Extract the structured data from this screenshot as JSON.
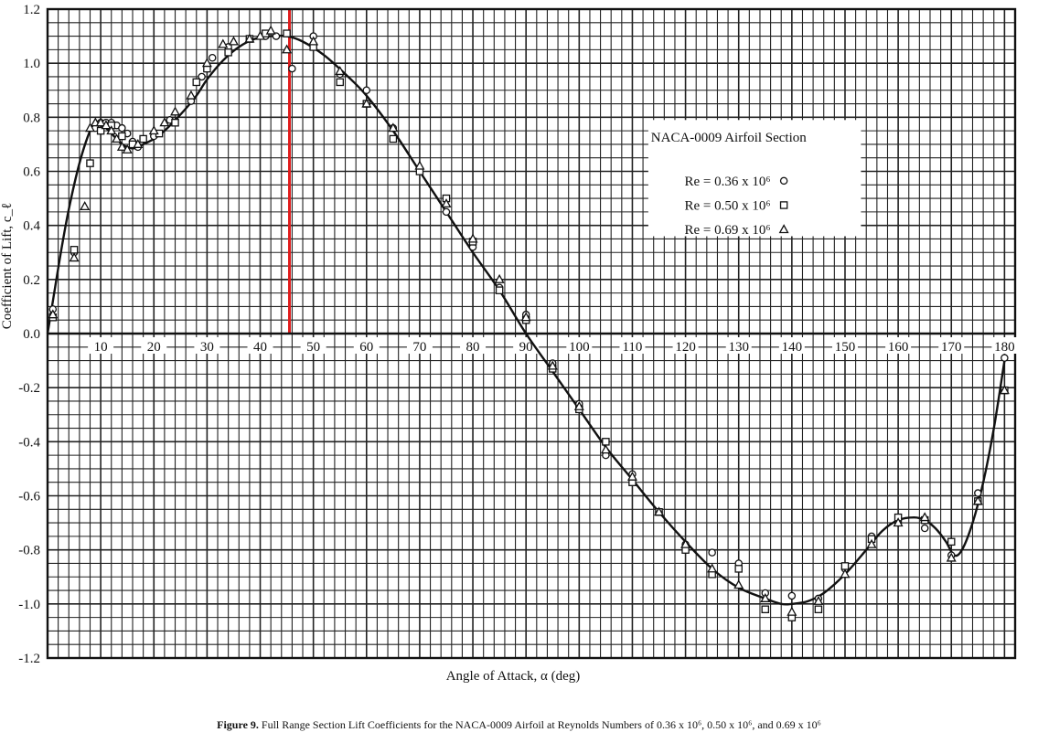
{
  "caption": {
    "label": "Figure 9.",
    "text": "Full Range Section Lift Coefficients for the NACA-0009 Airfoil at Reynolds Numbers of 0.36 x 10⁶, 0.50 x 10⁶, and 0.69 x 10⁶"
  },
  "chart_data": {
    "type": "scatter",
    "xlabel": "Angle of Attack, α (deg)",
    "ylabel": "Coefficient of Lift, c_ℓ",
    "xlim": [
      0,
      182
    ],
    "ylim": [
      -1.2,
      1.2
    ],
    "xticks": [
      "10",
      "20",
      "30",
      "40",
      "50",
      "60",
      "70",
      "80",
      "90",
      "100",
      "110",
      "120",
      "130",
      "140",
      "150",
      "160",
      "170",
      "180"
    ],
    "yticks": [
      "1.2",
      "1.0",
      "0.8",
      "0.6",
      "0.4",
      "0.2",
      "0.0",
      "-0.2",
      "-0.4",
      "-0.6",
      "-0.8",
      "-1.0",
      "-1.2"
    ],
    "grid": true,
    "legend_title": "NACA-0009 Airfoil Section",
    "legend_position": "upper-right",
    "highlight_line_x": 45.5,
    "highlight_color": "#e11d1d",
    "fit_curve": {
      "x": [
        0,
        1,
        2.5,
        4,
        6,
        8,
        9,
        10,
        11,
        12,
        13,
        14,
        15,
        16,
        17,
        18,
        20,
        22,
        25,
        28,
        30,
        33,
        36,
        39,
        42,
        45,
        48,
        52,
        56,
        60,
        65,
        70,
        75,
        80,
        85,
        90,
        95,
        100,
        105,
        110,
        115,
        120,
        125,
        130,
        135,
        138,
        140,
        143,
        146,
        150,
        154,
        157,
        160,
        163,
        165,
        167,
        169,
        170.5,
        172,
        174,
        176,
        178,
        180
      ],
      "y": [
        0.0,
        0.12,
        0.3,
        0.46,
        0.63,
        0.75,
        0.77,
        0.77,
        0.76,
        0.74,
        0.72,
        0.7,
        0.69,
        0.685,
        0.69,
        0.7,
        0.72,
        0.75,
        0.81,
        0.88,
        0.94,
        1.01,
        1.06,
        1.09,
        1.1,
        1.1,
        1.08,
        1.03,
        0.96,
        0.88,
        0.75,
        0.6,
        0.45,
        0.3,
        0.16,
        0.0,
        -0.14,
        -0.28,
        -0.42,
        -0.54,
        -0.66,
        -0.77,
        -0.87,
        -0.94,
        -0.98,
        -1.0,
        -1.0,
        -0.99,
        -0.96,
        -0.89,
        -0.8,
        -0.73,
        -0.69,
        -0.68,
        -0.69,
        -0.72,
        -0.77,
        -0.82,
        -0.8,
        -0.7,
        -0.55,
        -0.35,
        -0.1
      ]
    },
    "series": [
      {
        "name": "Re = 0.36 x 10⁶",
        "marker": "circle",
        "x": [
          1,
          5,
          8,
          9,
          10,
          11,
          12,
          13,
          14,
          15,
          16,
          17,
          20,
          23,
          27,
          29,
          31,
          34,
          38,
          41,
          43,
          46,
          50,
          55,
          60,
          65,
          70,
          75,
          80,
          85,
          90,
          95,
          100,
          105,
          110,
          115,
          120,
          125,
          130,
          135,
          140,
          145,
          150,
          155,
          160,
          165,
          170,
          175,
          180
        ],
        "y": [
          0.09,
          0.3,
          0.63,
          0.76,
          0.78,
          0.78,
          0.78,
          0.77,
          0.76,
          0.74,
          0.71,
          0.69,
          0.73,
          0.79,
          0.86,
          0.95,
          1.02,
          1.06,
          1.09,
          1.1,
          1.1,
          0.98,
          1.1,
          0.96,
          0.9,
          0.76,
          0.61,
          0.45,
          0.32,
          0.17,
          0.07,
          -0.11,
          -0.26,
          -0.45,
          -0.52,
          -0.66,
          -0.78,
          -0.81,
          -0.85,
          -0.96,
          -0.97,
          -0.98,
          -0.87,
          -0.75,
          -0.7,
          -0.72,
          -0.82,
          -0.59,
          -0.09
        ]
      },
      {
        "name": "Re = 0.50 x 10⁶",
        "marker": "square",
        "x": [
          1,
          5,
          8,
          10,
          12,
          14,
          16,
          18,
          21,
          24,
          28,
          30,
          34,
          38,
          41,
          45,
          50,
          55,
          60,
          65,
          70,
          75,
          80,
          85,
          90,
          95,
          100,
          105,
          110,
          115,
          120,
          125,
          130,
          135,
          140,
          145,
          150,
          155,
          160,
          165,
          170,
          175,
          180
        ],
        "y": [
          0.06,
          0.31,
          0.63,
          0.75,
          0.77,
          0.73,
          0.7,
          0.72,
          0.74,
          0.78,
          0.93,
          0.98,
          1.04,
          1.09,
          1.11,
          1.11,
          1.06,
          0.93,
          0.85,
          0.72,
          0.6,
          0.5,
          0.34,
          0.16,
          0.05,
          -0.13,
          -0.28,
          -0.4,
          -0.55,
          -0.66,
          -0.8,
          -0.89,
          -0.87,
          -1.02,
          -1.05,
          -1.02,
          -0.86,
          -0.76,
          -0.68,
          -0.69,
          -0.77,
          -0.62,
          -0.21
        ]
      },
      {
        "name": "Re = 0.69 x 10⁶",
        "marker": "triangle",
        "x": [
          1,
          5,
          7,
          8,
          9,
          10,
          11,
          12,
          13,
          14,
          15,
          17,
          20,
          22,
          24,
          27,
          30,
          33,
          35,
          38,
          40,
          42,
          45,
          50,
          55,
          60,
          65,
          70,
          75,
          80,
          85,
          90,
          95,
          100,
          105,
          110,
          115,
          120,
          125,
          130,
          135,
          140,
          145,
          150,
          155,
          160,
          165,
          170,
          175,
          180
        ],
        "y": [
          0.07,
          0.28,
          0.47,
          0.76,
          0.78,
          0.78,
          0.77,
          0.75,
          0.72,
          0.69,
          0.68,
          0.7,
          0.75,
          0.78,
          0.82,
          0.88,
          1.0,
          1.07,
          1.08,
          1.09,
          1.1,
          1.12,
          1.05,
          1.08,
          0.97,
          0.85,
          0.76,
          0.62,
          0.48,
          0.35,
          0.2,
          0.06,
          -0.12,
          -0.27,
          -0.43,
          -0.53,
          -0.66,
          -0.78,
          -0.87,
          -0.93,
          -0.98,
          -1.03,
          -0.99,
          -0.89,
          -0.78,
          -0.7,
          -0.68,
          -0.83,
          -0.62,
          -0.21
        ]
      }
    ]
  }
}
